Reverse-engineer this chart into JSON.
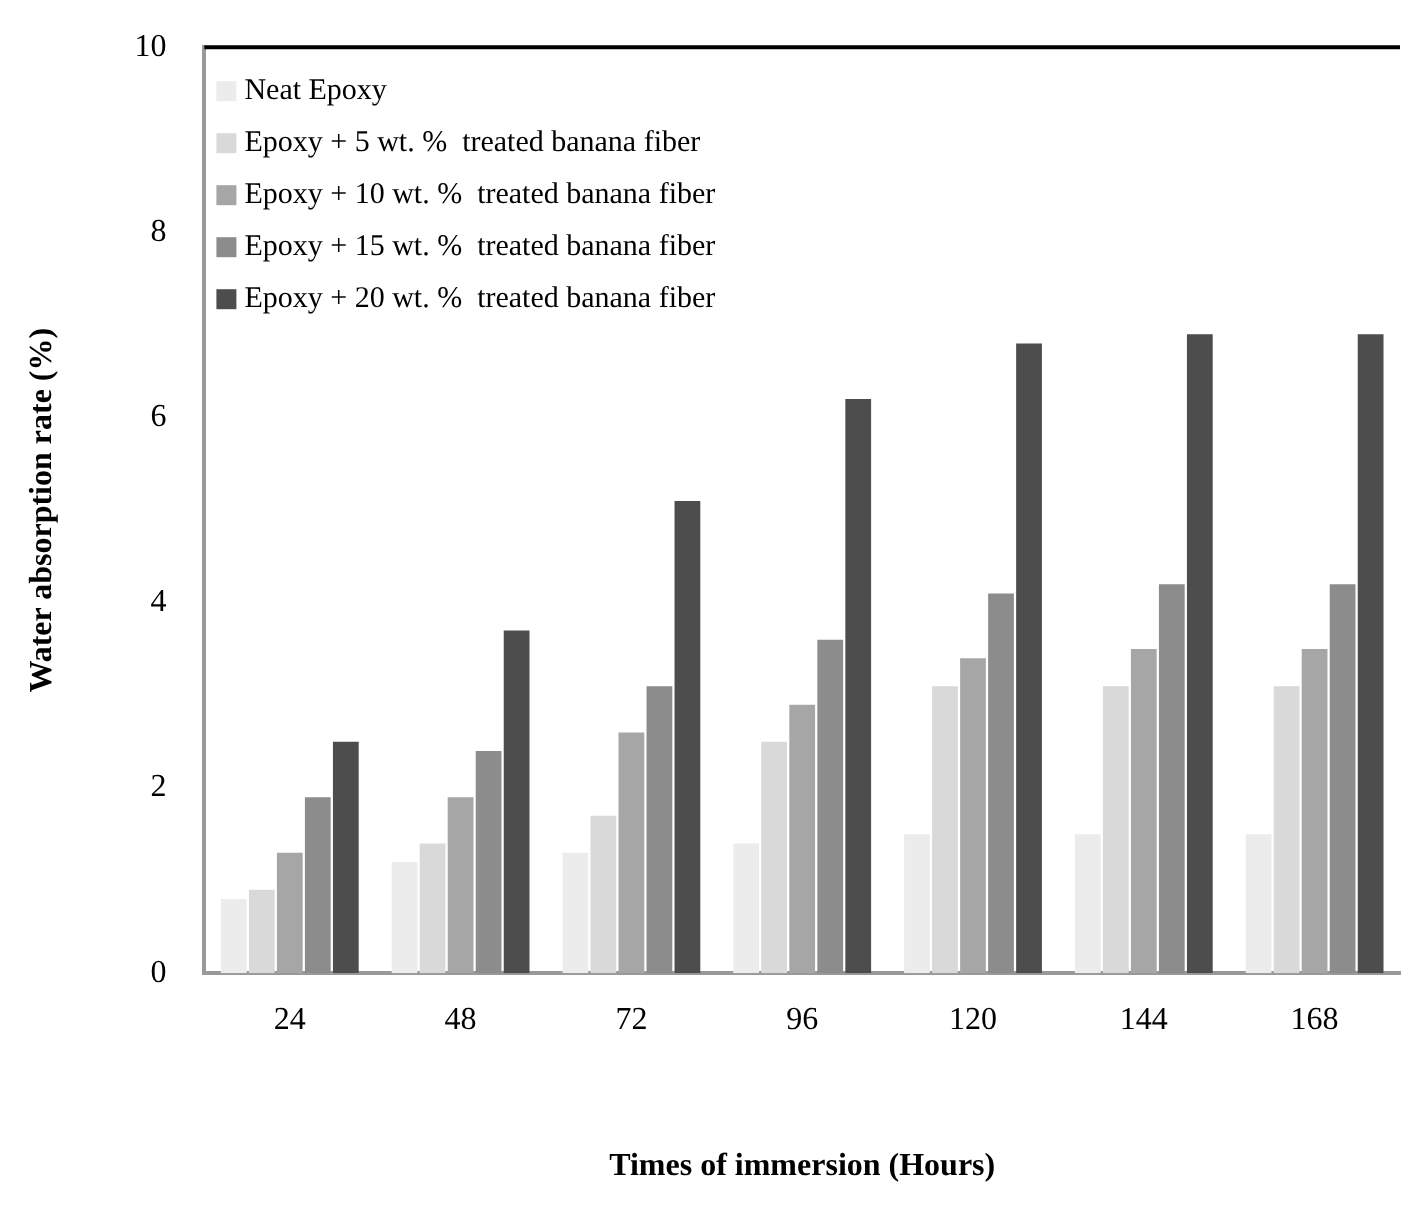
{
  "chart_data": {
    "type": "bar",
    "xlabel": "Times of immersion (Hours)",
    "ylabel": "Water absorption rate (%)",
    "categories": [
      "24",
      "48",
      "72",
      "96",
      "120",
      "144",
      "168"
    ],
    "series": [
      {
        "name": "Neat Epoxy",
        "color": "#ececec",
        "values": [
          0.8,
          1.2,
          1.3,
          1.4,
          1.5,
          1.5,
          1.5
        ]
      },
      {
        "name": "Epoxy + 5 wt. %  treated banana fiber",
        "color": "#d9d9d9",
        "values": [
          0.9,
          1.4,
          1.7,
          2.5,
          3.1,
          3.1,
          3.1
        ]
      },
      {
        "name": "Epoxy + 10 wt. %  treated banana fiber",
        "color": "#a6a6a6",
        "values": [
          1.3,
          1.9,
          2.6,
          2.9,
          3.4,
          3.5,
          3.5
        ]
      },
      {
        "name": "Epoxy + 15 wt. %  treated banana fiber",
        "color": "#8c8c8c",
        "values": [
          1.9,
          2.4,
          3.1,
          3.6,
          4.1,
          4.2,
          4.2
        ]
      },
      {
        "name": "Epoxy + 20 wt. %  treated banana fiber",
        "color": "#4d4d4d",
        "values": [
          2.5,
          3.7,
          5.1,
          6.2,
          6.8,
          6.9,
          6.9
        ]
      }
    ],
    "ylim": [
      0,
      10
    ],
    "yticks": [
      0,
      2,
      4,
      6,
      8,
      10
    ],
    "grid": false,
    "legend": "top left"
  }
}
